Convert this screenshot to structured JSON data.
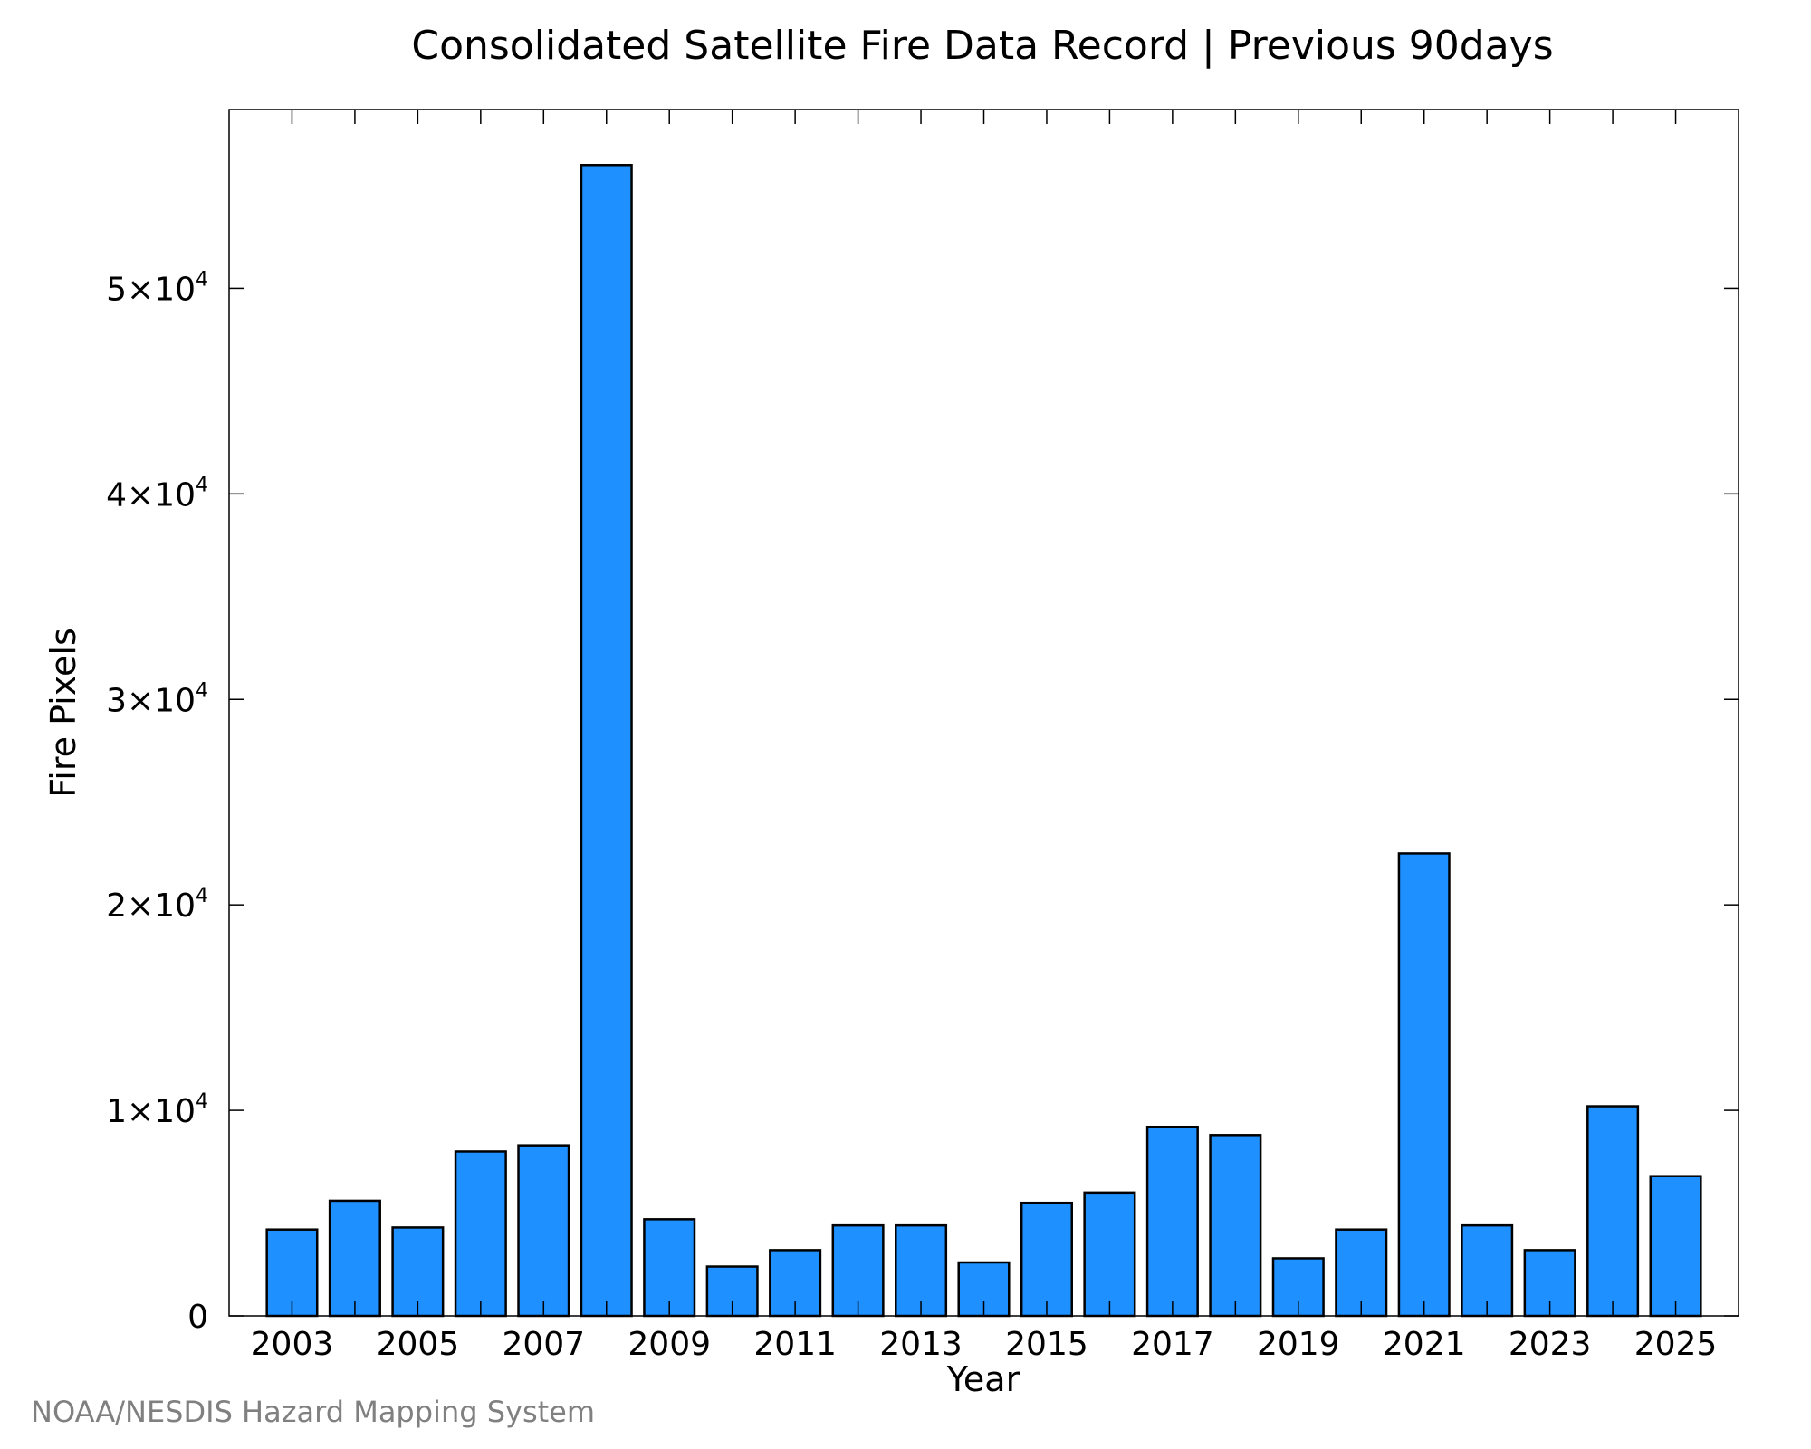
{
  "chart_data": {
    "type": "bar",
    "title": "Consolidated Satellite Fire Data Record | Previous 90days",
    "xlabel": "Year",
    "ylabel": "Fire Pixels",
    "x": [
      2003,
      2004,
      2005,
      2006,
      2007,
      2008,
      2009,
      2010,
      2011,
      2012,
      2013,
      2014,
      2015,
      2016,
      2017,
      2018,
      2019,
      2020,
      2021,
      2022,
      2023,
      2024,
      2025
    ],
    "values": [
      4200,
      5600,
      4300,
      8000,
      8300,
      56000,
      4700,
      2400,
      3200,
      4400,
      4400,
      2600,
      5500,
      6000,
      9200,
      8800,
      2800,
      4200,
      22500,
      4400,
      3200,
      10200,
      6800
    ],
    "xticks": [
      "2003",
      "2005",
      "2007",
      "2009",
      "2011",
      "2013",
      "2015",
      "2017",
      "2019",
      "2021",
      "2023",
      "2025"
    ],
    "yticks": [
      {
        "value": 0,
        "label": "0"
      },
      {
        "value": 10000,
        "label": "1×10",
        "exp": "4"
      },
      {
        "value": 20000,
        "label": "2×10",
        "exp": "4"
      },
      {
        "value": 30000,
        "label": "3×10",
        "exp": "4"
      },
      {
        "value": 40000,
        "label": "4×10",
        "exp": "4"
      },
      {
        "value": 50000,
        "label": "5×10",
        "exp": "4"
      }
    ],
    "xlim": [
      2002,
      2026
    ],
    "ylim": [
      0,
      58700
    ],
    "bar_color": "#1e90ff",
    "edge_color": "#000000",
    "grid": false
  },
  "credit": "NOAA/NESDIS Hazard Mapping System"
}
